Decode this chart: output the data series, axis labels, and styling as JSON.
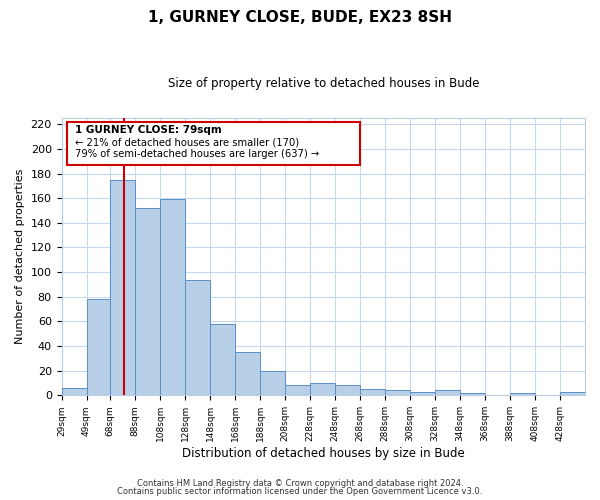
{
  "title": "1, GURNEY CLOSE, BUDE, EX23 8SH",
  "subtitle": "Size of property relative to detached houses in Bude",
  "xlabel": "Distribution of detached houses by size in Bude",
  "ylabel": "Number of detached properties",
  "bar_labels": [
    "29sqm",
    "49sqm",
    "68sqm",
    "88sqm",
    "108sqm",
    "128sqm",
    "148sqm",
    "168sqm",
    "188sqm",
    "208sqm",
    "228sqm",
    "248sqm",
    "268sqm",
    "288sqm",
    "308sqm",
    "328sqm",
    "348sqm",
    "368sqm",
    "388sqm",
    "408sqm",
    "428sqm"
  ],
  "bar_values": [
    6,
    78,
    175,
    152,
    159,
    94,
    58,
    35,
    20,
    8,
    10,
    8,
    5,
    4,
    3,
    4,
    2,
    0,
    2,
    0,
    3
  ],
  "bar_color": "#b8cfe8",
  "bar_edge_color": "#5b8fc9",
  "vline_x": 79,
  "vline_color": "#cc0000",
  "annotation_title": "1 GURNEY CLOSE: 79sqm",
  "annotation_line1": "← 21% of detached houses are smaller (170)",
  "annotation_line2": "79% of semi-detached houses are larger (637) →",
  "annotation_box_edge": "#cc0000",
  "ylim": [
    0,
    225
  ],
  "yticks": [
    0,
    20,
    40,
    60,
    80,
    100,
    120,
    140,
    160,
    180,
    200,
    220
  ],
  "footer1": "Contains HM Land Registry data © Crown copyright and database right 2024.",
  "footer2": "Contains public sector information licensed under the Open Government Licence v3.0.",
  "bg_color": "#ffffff",
  "grid_color": "#c8d8ec",
  "bin_width": 20
}
